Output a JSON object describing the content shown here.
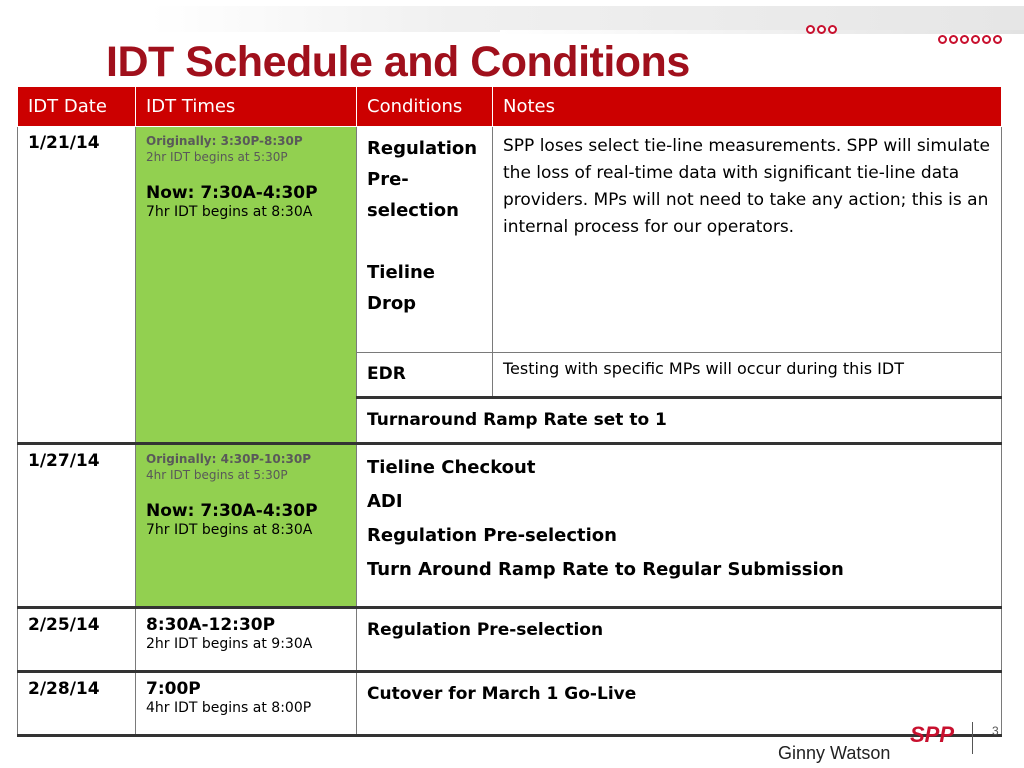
{
  "slide": {
    "title": "IDT Schedule and Conditions",
    "author": "Ginny Watson",
    "page_number": "3",
    "logo_text": "SPP"
  },
  "table": {
    "headers": [
      "IDT Date",
      "IDT Times",
      "Conditions",
      "Notes"
    ],
    "rows": {
      "r1": {
        "date": "1/21/14",
        "orig_label": "Originally: 3:30P-8:30P",
        "orig_sub": "2hr IDT begins at 5:30P",
        "now_label": "Now: 7:30A-4:30P",
        "now_sub": "7hr IDT begins at 8:30A",
        "cond_a1": "Regulation",
        "cond_a2": "Pre-",
        "cond_a3": "selection",
        "cond_a4": "Tieline",
        "cond_a5": "Drop",
        "note_a": "SPP loses select tie-line measurements.  SPP will simulate the loss of real-time data with significant tie-line data providers.  MPs will not need to take any action; this is an internal process for our operators.",
        "cond_b": "EDR",
        "note_b": "Testing with specific MPs will occur during this IDT",
        "cond_c": "Turnaround Ramp Rate set to 1"
      },
      "r2": {
        "date": "1/27/14",
        "orig_label": "Originally: 4:30P-10:30P",
        "orig_sub": "4hr IDT begins at 5:30P",
        "now_label": "Now: 7:30A-4:30P",
        "now_sub": "7hr IDT begins at 8:30A",
        "conditions": [
          "Tieline Checkout",
          "ADI",
          "Regulation Pre-selection",
          "Turn Around Ramp Rate to Regular Submission"
        ]
      },
      "r3": {
        "date": "2/25/14",
        "time": "8:30A-12:30P",
        "time_sub": "2hr IDT begins at 9:30A",
        "condition": "Regulation Pre-selection"
      },
      "r4": {
        "date": "2/28/14",
        "time": "7:00P",
        "time_sub": "4hr IDT begins at 8:00P",
        "condition": "Cutover for March 1 Go-Live"
      }
    }
  },
  "colors": {
    "header_red": "#cc0000",
    "title_red": "#a0101c",
    "highlight_green": "#92d050"
  }
}
